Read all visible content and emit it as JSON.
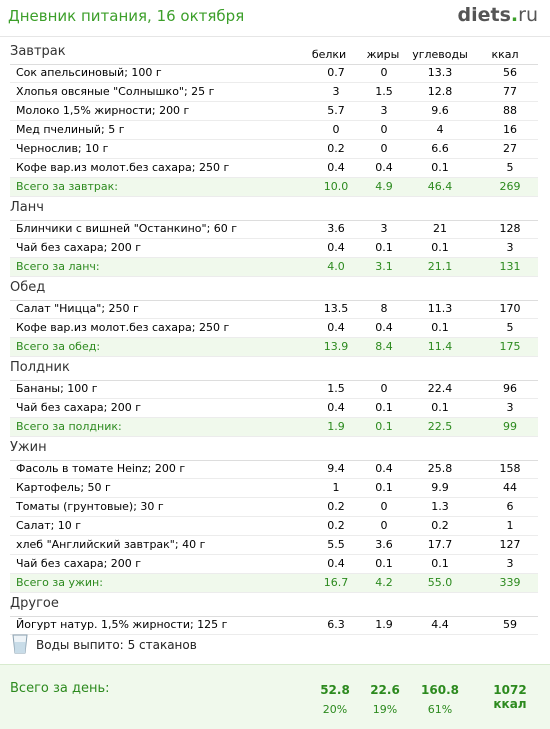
{
  "header": {
    "title": "Дневник питания, 16 октября",
    "logo_main": "diets",
    "logo_dot": ".",
    "logo_tld": "ru"
  },
  "columns": {
    "protein": "белки",
    "fat": "жиры",
    "carbs": "углеводы",
    "kcal": "ккал"
  },
  "sections": [
    {
      "title": "Завтрак",
      "rows": [
        {
          "name": "Сок апельсиновый; 100 г",
          "p": "0.7",
          "f": "0",
          "c": "13.3",
          "k": "56"
        },
        {
          "name": "Хлопья овсяные \"Солнышко\"; 25 г",
          "p": "3",
          "f": "1.5",
          "c": "12.8",
          "k": "77"
        },
        {
          "name": "Молоко 1,5% жирности; 200 г",
          "p": "5.7",
          "f": "3",
          "c": "9.6",
          "k": "88"
        },
        {
          "name": "Мед пчелиный; 5 г",
          "p": "0",
          "f": "0",
          "c": "4",
          "k": "16"
        },
        {
          "name": "Чернослив; 10 г",
          "p": "0.2",
          "f": "0",
          "c": "6.6",
          "k": "27"
        },
        {
          "name": "Кофе вар.из молот.без сахара; 250 г",
          "p": "0.4",
          "f": "0.4",
          "c": "0.1",
          "k": "5"
        }
      ],
      "total": {
        "name": "Всего за завтрак:",
        "p": "10.0",
        "f": "4.9",
        "c": "46.4",
        "k": "269"
      }
    },
    {
      "title": "Ланч",
      "rows": [
        {
          "name": "Блинчики с вишней \"Останкино\"; 60 г",
          "p": "3.6",
          "f": "3",
          "c": "21",
          "k": "128"
        },
        {
          "name": "Чай без сахара; 200 г",
          "p": "0.4",
          "f": "0.1",
          "c": "0.1",
          "k": "3"
        }
      ],
      "total": {
        "name": "Всего за ланч:",
        "p": "4.0",
        "f": "3.1",
        "c": "21.1",
        "k": "131"
      }
    },
    {
      "title": "Обед",
      "rows": [
        {
          "name": "Салат \"Ницца\"; 250 г",
          "p": "13.5",
          "f": "8",
          "c": "11.3",
          "k": "170"
        },
        {
          "name": "Кофе вар.из молот.без сахара; 250 г",
          "p": "0.4",
          "f": "0.4",
          "c": "0.1",
          "k": "5"
        }
      ],
      "total": {
        "name": "Всего за обед:",
        "p": "13.9",
        "f": "8.4",
        "c": "11.4",
        "k": "175"
      }
    },
    {
      "title": "Полдник",
      "rows": [
        {
          "name": "Бананы; 100 г",
          "p": "1.5",
          "f": "0",
          "c": "22.4",
          "k": "96"
        },
        {
          "name": "Чай без сахара; 200 г",
          "p": "0.4",
          "f": "0.1",
          "c": "0.1",
          "k": "3"
        }
      ],
      "total": {
        "name": "Всего за полдник:",
        "p": "1.9",
        "f": "0.1",
        "c": "22.5",
        "k": "99"
      }
    },
    {
      "title": "Ужин",
      "rows": [
        {
          "name": "Фасоль в томате Heinz; 200 г",
          "p": "9.4",
          "f": "0.4",
          "c": "25.8",
          "k": "158"
        },
        {
          "name": "Картофель; 50 г",
          "p": "1",
          "f": "0.1",
          "c": "9.9",
          "k": "44"
        },
        {
          "name": "Томаты (грунтовые); 30 г",
          "p": "0.2",
          "f": "0",
          "c": "1.3",
          "k": "6"
        },
        {
          "name": "Салат; 10 г",
          "p": "0.2",
          "f": "0",
          "c": "0.2",
          "k": "1"
        },
        {
          "name": "хлеб \"Английский завтрак\"; 40 г",
          "p": "5.5",
          "f": "3.6",
          "c": "17.7",
          "k": "127"
        },
        {
          "name": "Чай без сахара; 200 г",
          "p": "0.4",
          "f": "0.1",
          "c": "0.1",
          "k": "3"
        }
      ],
      "total": {
        "name": "Всего за ужин:",
        "p": "16.7",
        "f": "4.2",
        "c": "55.0",
        "k": "339"
      }
    },
    {
      "title": "Другое",
      "rows": [
        {
          "name": "Йогурт натур. 1,5% жирности; 125 г",
          "p": "6.3",
          "f": "1.9",
          "c": "4.4",
          "k": "59"
        }
      ],
      "total": null
    }
  ],
  "water": {
    "label": "Воды выпито:",
    "value": "5 стаканов",
    "icon": "glass-icon"
  },
  "day_total": {
    "label": "Всего за день:",
    "protein": "52.8",
    "fat": "22.6",
    "carbs": "160.8",
    "kcal": "1072 ккал",
    "protein_pct": "20%",
    "fat_pct": "19%",
    "carbs_pct": "61%"
  }
}
